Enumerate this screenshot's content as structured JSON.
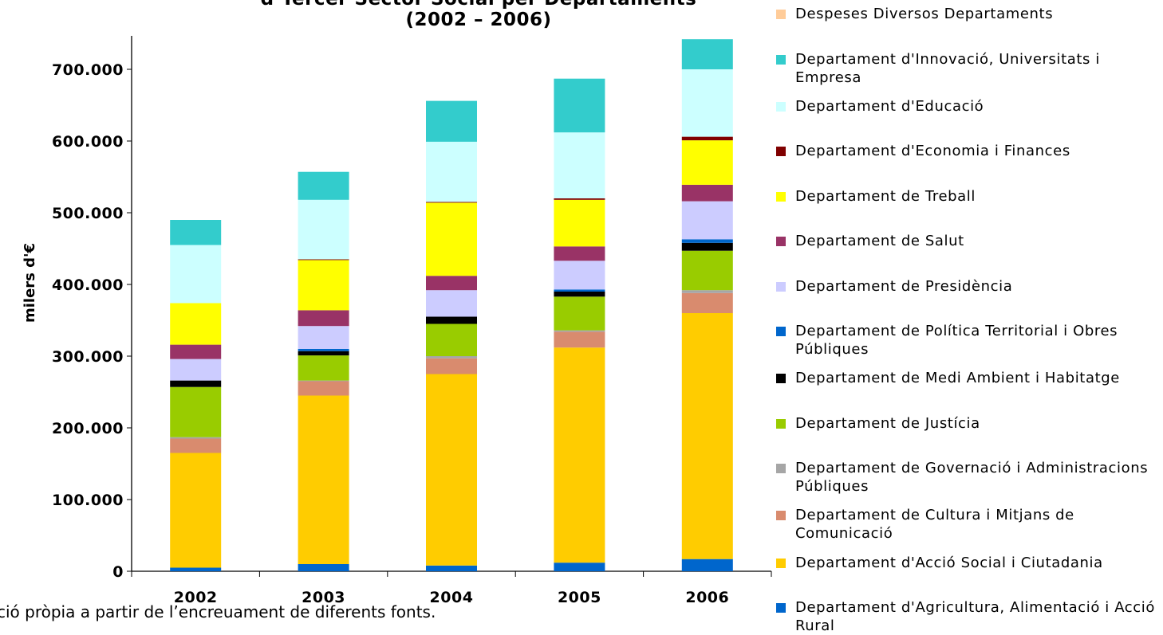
{
  "title_line1": "d’Tercer Sector Social per Departaments",
  "title_line2": "(2002 – 2006)",
  "source_text": "ció pròpia a partir de l’encreuament de diferents fonts.",
  "chart_data": {
    "type": "bar",
    "stacked": true,
    "ylabel": "milers d'€",
    "ylim": [
      0,
      750000
    ],
    "yticks": [
      0,
      100000,
      200000,
      300000,
      400000,
      500000,
      600000,
      700000
    ],
    "ytick_labels": [
      "0",
      "100.000",
      "200.000",
      "300.000",
      "400.000",
      "500.000",
      "600.000",
      "700.000"
    ],
    "categories": [
      "2002",
      "2003",
      "2004",
      "2005",
      "2006"
    ],
    "legend_position": "right",
    "series": [
      {
        "name": "Departament d'Agricultura, Alimentació i Acció Rural",
        "color": "#0066cc",
        "values": [
          5000,
          10000,
          8000,
          12000,
          17000
        ]
      },
      {
        "name": "Departament d'Acció Social i Ciutadania",
        "color": "#ffcc00",
        "values": [
          160000,
          235000,
          267000,
          300000,
          343000
        ]
      },
      {
        "name": "Departament de Cultura i Mitjans de Comunicació",
        "color": "#d98b6e",
        "values": [
          20000,
          20000,
          22000,
          22000,
          28000
        ]
      },
      {
        "name": "Departament de Governació i Administracions Públiques",
        "color": "#a6a6a6",
        "values": [
          2000,
          1000,
          3000,
          2000,
          4000
        ]
      },
      {
        "name": "Departament de Justícia",
        "color": "#99cc00",
        "values": [
          70000,
          35000,
          45000,
          47000,
          55000
        ]
      },
      {
        "name": "Departament de Medi Ambient i Habitatge",
        "color": "#000000",
        "values": [
          9000,
          6000,
          10000,
          7000,
          11000
        ]
      },
      {
        "name": "Departament de Política Territorial i Obres Públiques",
        "color": "#0066cc",
        "values": [
          0,
          3000,
          0,
          3000,
          5000
        ]
      },
      {
        "name": "Departament de Presidència",
        "color": "#ccccff",
        "values": [
          30000,
          32000,
          37000,
          40000,
          53000
        ]
      },
      {
        "name": "Departament de Salut",
        "color": "#993366",
        "values": [
          20000,
          22000,
          20000,
          20000,
          23000
        ]
      },
      {
        "name": "Departament de Treball",
        "color": "#ffff00",
        "values": [
          58000,
          70000,
          102000,
          65000,
          62000
        ]
      },
      {
        "name": "Departament d'Economia i Finances",
        "color": "#800000",
        "values": [
          0,
          1000,
          1000,
          2000,
          5000
        ]
      },
      {
        "name": "Departament d'Educació",
        "color": "#ccffff",
        "values": [
          81000,
          83000,
          84000,
          92000,
          94000
        ]
      },
      {
        "name": "Departament d'Innovació, Universitats i Empresa",
        "color": "#33cccc",
        "values": [
          35000,
          39000,
          57000,
          75000,
          42000
        ]
      },
      {
        "name": "Despeses Diversos Departaments",
        "color": "#ffcc99",
        "values": [
          0,
          0,
          0,
          0,
          0
        ]
      }
    ]
  },
  "legend_items": [
    {
      "label": "Despeses Diversos Departaments",
      "color": "#ffcc99",
      "lines": 1
    },
    {
      "label": "Departament d'Innovació, Universitats i Empresa",
      "color": "#33cccc",
      "lines": 2
    },
    {
      "label": "Departament d'Educació",
      "color": "#ccffff",
      "lines": 1
    },
    {
      "label": "Departament d'Economia i Finances",
      "color": "#800000",
      "lines": 1
    },
    {
      "label": "Departament de Treball",
      "color": "#ffff00",
      "lines": 1
    },
    {
      "label": "Departament de Salut",
      "color": "#993366",
      "lines": 1
    },
    {
      "label": "Departament de Presidència",
      "color": "#ccccff",
      "lines": 1
    },
    {
      "label": "Departament de Política Territorial i Obres Públiques",
      "color": "#0066cc",
      "lines": 2
    },
    {
      "label": "Departament de Medi Ambient i Habitatge",
      "color": "#000000",
      "lines": 1
    },
    {
      "label": "Departament de Justícia",
      "color": "#99cc00",
      "lines": 1
    },
    {
      "label": "Departament de Governació i Administracions Públiques",
      "color": "#a6a6a6",
      "lines": 2
    },
    {
      "label": "Departament de Cultura i Mitjans de Comunicació",
      "color": "#d98b6e",
      "lines": 2
    },
    {
      "label": "Departament d'Acció Social i Ciutadania",
      "color": "#ffcc00",
      "lines": 1
    },
    {
      "label": "Departament d'Agricultura, Alimentació i Acció Rural",
      "color": "#0066cc",
      "lines": 2
    }
  ]
}
